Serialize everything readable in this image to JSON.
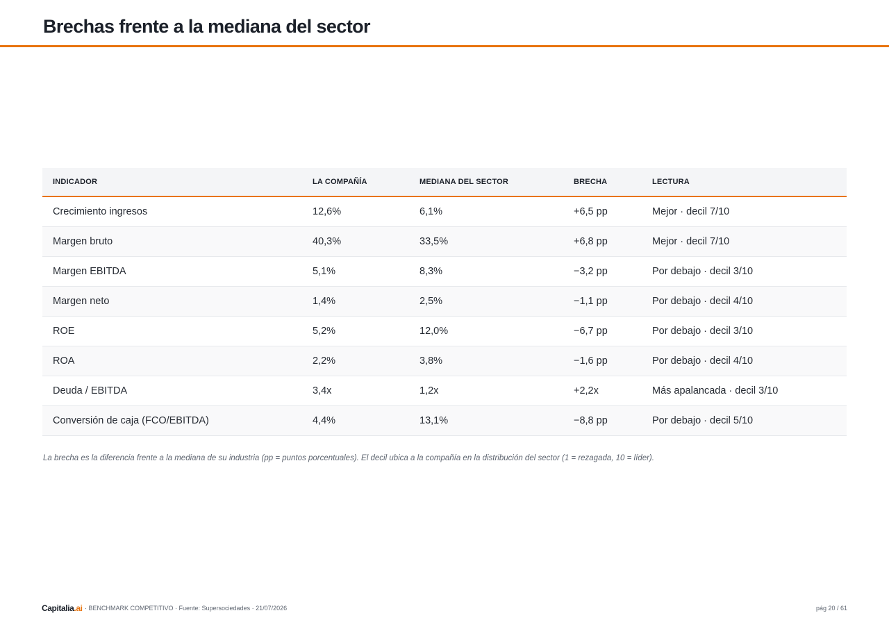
{
  "colors": {
    "accent": "#e8740f",
    "header_bg": "#f4f5f7",
    "row_alt_bg": "#f9f9fa",
    "divider": "#e7e9ec"
  },
  "page": {
    "title": "Brechas frente a la mediana del sector"
  },
  "table": {
    "columns": [
      "INDICADOR",
      "LA COMPAÑÍA",
      "MEDIANA DEL SECTOR",
      "BRECHA",
      "LECTURA"
    ],
    "rows": [
      {
        "indicator": "Crecimiento ingresos",
        "company": "12,6%",
        "median": "6,1%",
        "gap": "+6,5 pp",
        "reading": "Mejor · decil 7/10"
      },
      {
        "indicator": "Margen bruto",
        "company": "40,3%",
        "median": "33,5%",
        "gap": "+6,8 pp",
        "reading": "Mejor · decil 7/10"
      },
      {
        "indicator": "Margen EBITDA",
        "company": "5,1%",
        "median": "8,3%",
        "gap": "−3,2 pp",
        "reading": "Por debajo · decil 3/10"
      },
      {
        "indicator": "Margen neto",
        "company": "1,4%",
        "median": "2,5%",
        "gap": "−1,1 pp",
        "reading": "Por debajo · decil 4/10"
      },
      {
        "indicator": "ROE",
        "company": "5,2%",
        "median": "12,0%",
        "gap": "−6,7 pp",
        "reading": "Por debajo · decil 3/10"
      },
      {
        "indicator": "ROA",
        "company": "2,2%",
        "median": "3,8%",
        "gap": "−1,6 pp",
        "reading": "Por debajo · decil 4/10"
      },
      {
        "indicator": "Deuda / EBITDA",
        "company": "3,4x",
        "median": "1,2x",
        "gap": "+2,2x",
        "reading": "Más apalancada · decil 3/10"
      },
      {
        "indicator": "Conversión de caja (FCO/EBITDA)",
        "company": "4,4%",
        "median": "13,1%",
        "gap": "−8,8 pp",
        "reading": "Por debajo · decil 5/10"
      }
    ]
  },
  "note": "La brecha es la diferencia frente a la mediana de su industria (pp = puntos porcentuales). El decil ubica a la compañía en la distribución del sector (1 = rezagada, 10 = líder).",
  "footer": {
    "brand_name": "Capitalia",
    "brand_domain": ".ai",
    "meta": "· BENCHMARK COMPETITIVO · Fuente: Supersociedades · 21/07/2026",
    "page_label": "pág 20 / 61"
  }
}
